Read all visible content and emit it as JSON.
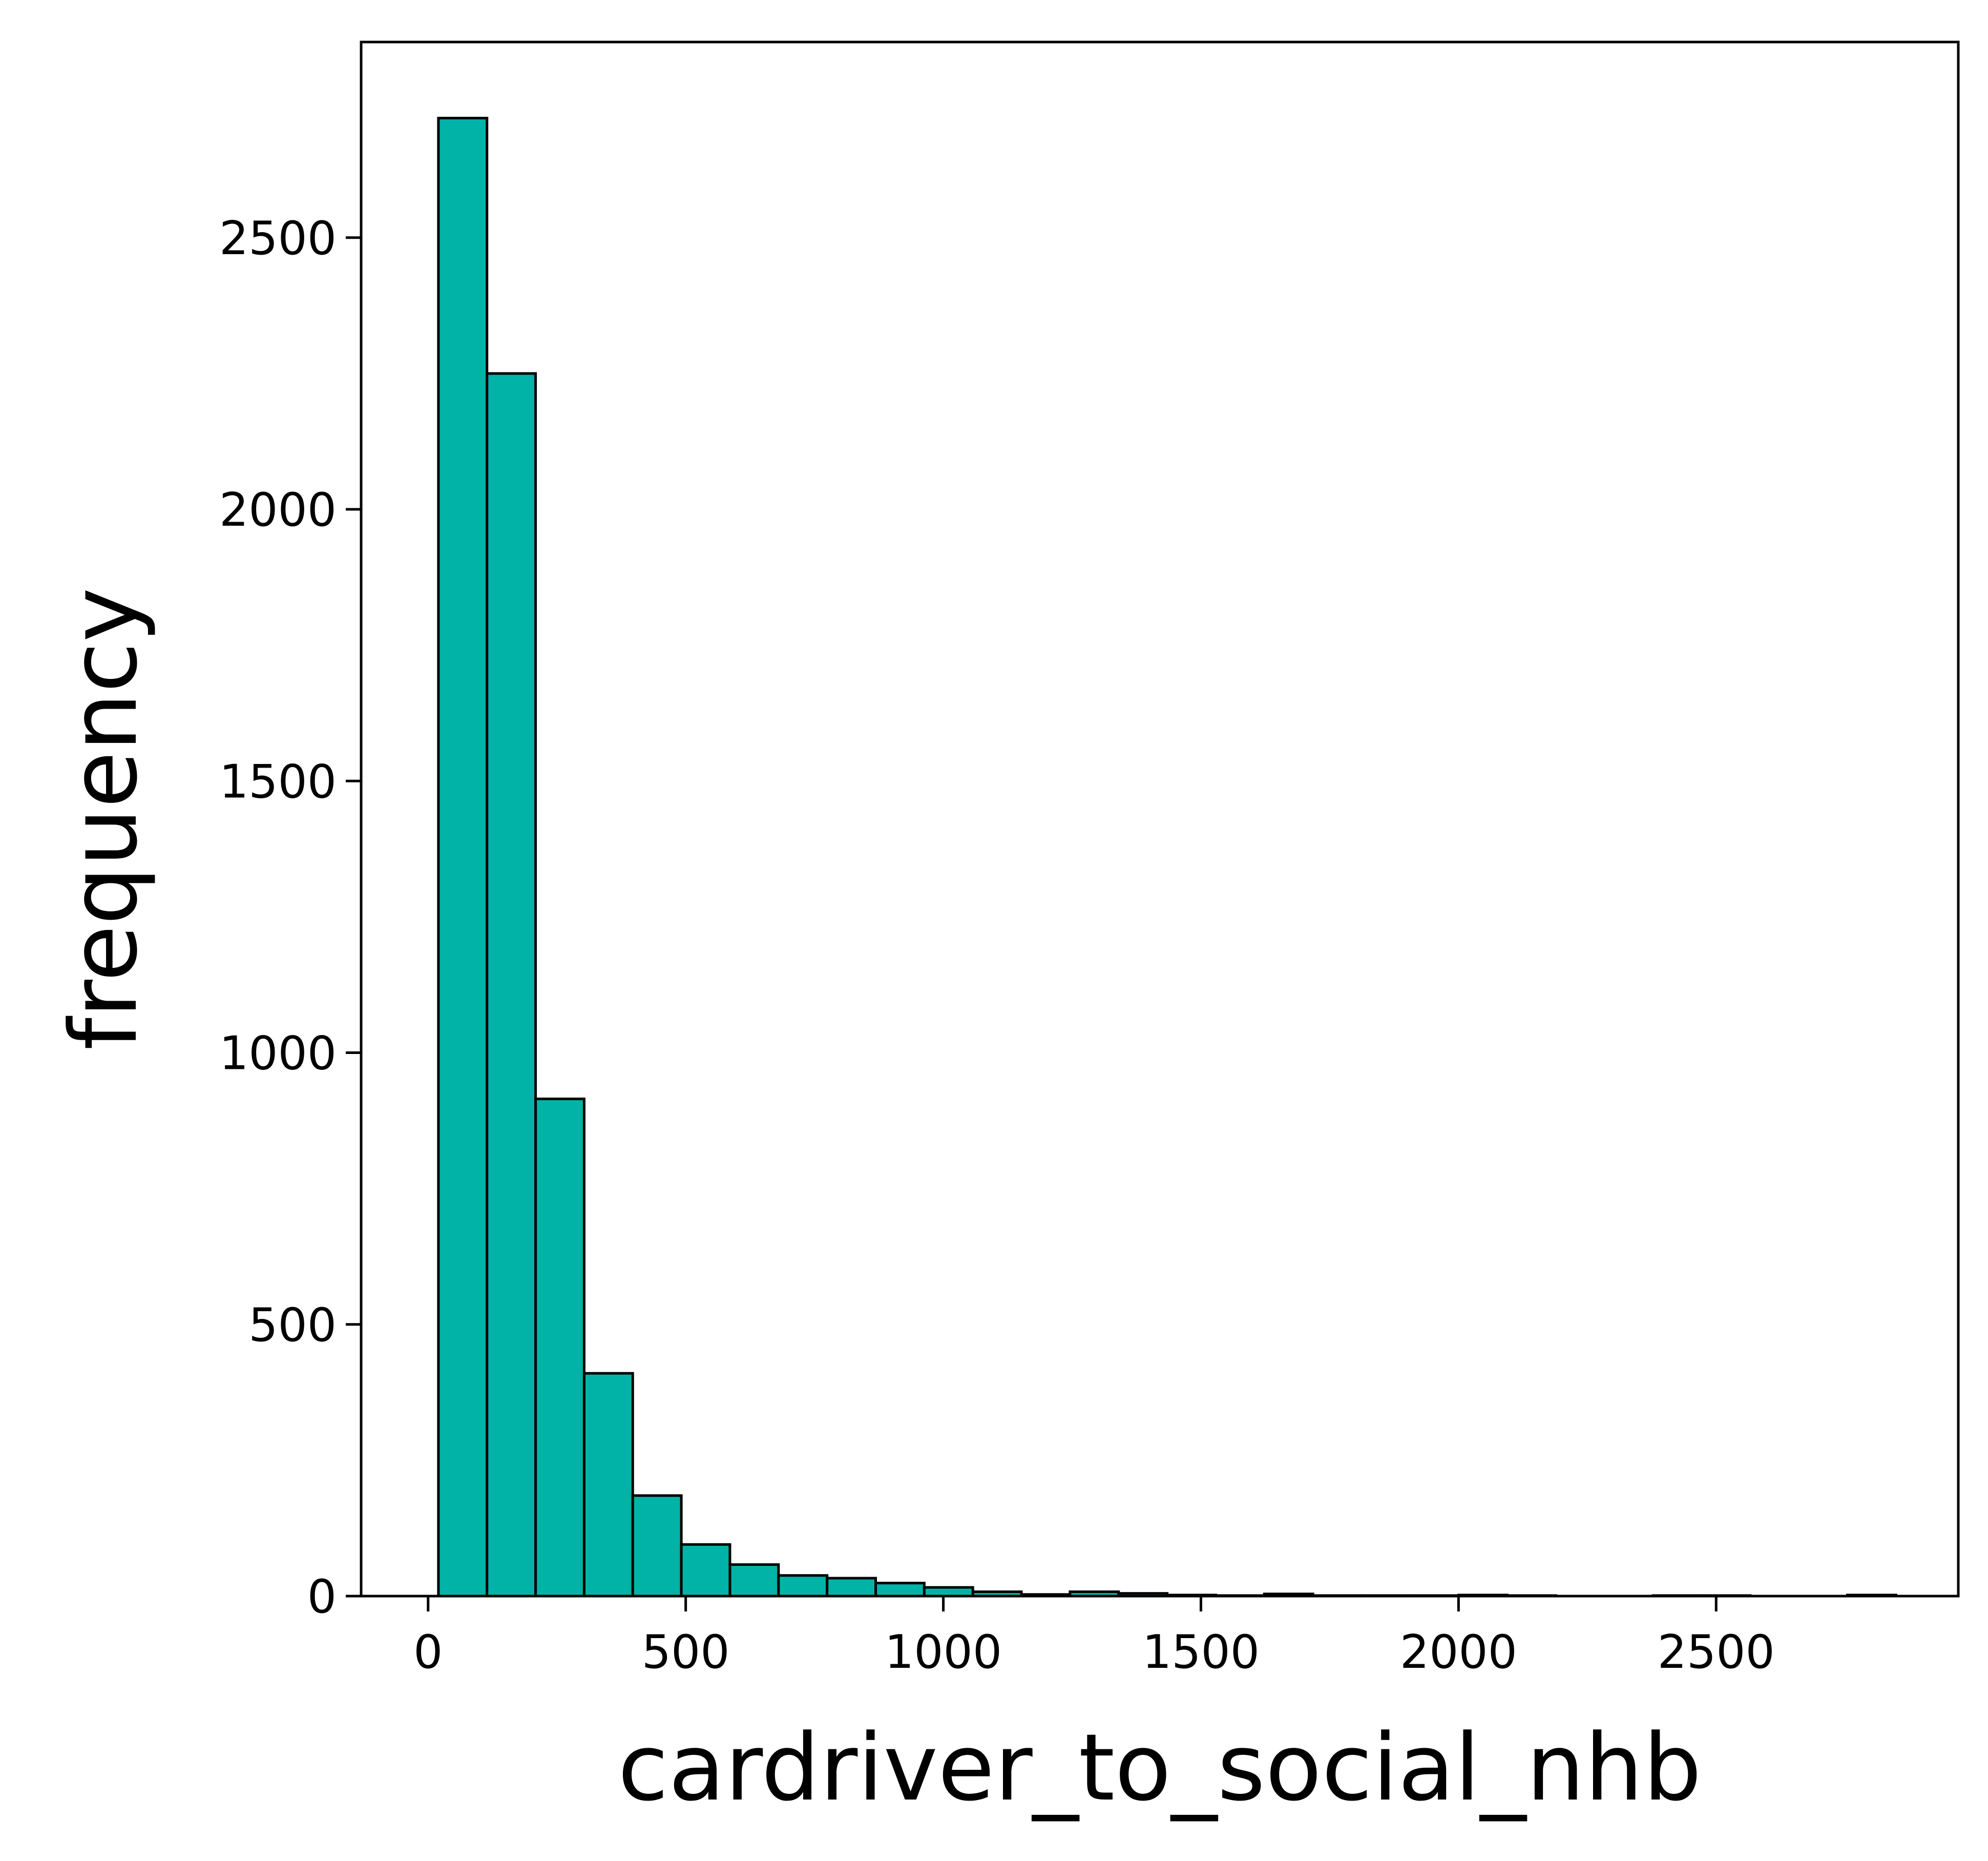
{
  "chart_data": {
    "type": "bar",
    "subtype": "histogram",
    "title": "",
    "xlabel": "cardriver_to_social_nhb",
    "ylabel": "frequency",
    "xlim": [
      -130,
      2970
    ],
    "ylim": [
      0,
      2860
    ],
    "x_ticks": [
      0,
      500,
      1000,
      1500,
      2000,
      2500
    ],
    "y_ticks": [
      0,
      500,
      1000,
      1500,
      2000,
      2500
    ],
    "bin_width": 94.3,
    "bin_starts": [
      20.0,
      114.3,
      208.6,
      302.9,
      397.2,
      491.5,
      585.8,
      680.1,
      774.4,
      868.7,
      963.0,
      1057.3,
      1151.6,
      1245.9,
      1340.2,
      1434.5,
      1528.8,
      1623.1,
      1717.4,
      1811.7,
      1906.0,
      2000.3,
      2094.6,
      2188.9,
      2283.2,
      2377.5,
      2471.8,
      2566.1,
      2660.4,
      2754.7
    ],
    "values": [
      2720,
      2250,
      915,
      410,
      185,
      95,
      58,
      38,
      33,
      24,
      16,
      8,
      3,
      8,
      5,
      2,
      1,
      4,
      1,
      1,
      1,
      2,
      1,
      0,
      0,
      1,
      1,
      0,
      0,
      2
    ],
    "grid": false,
    "legend": "none",
    "bar_color": "#00b3a6",
    "edge_color": "#000000"
  }
}
